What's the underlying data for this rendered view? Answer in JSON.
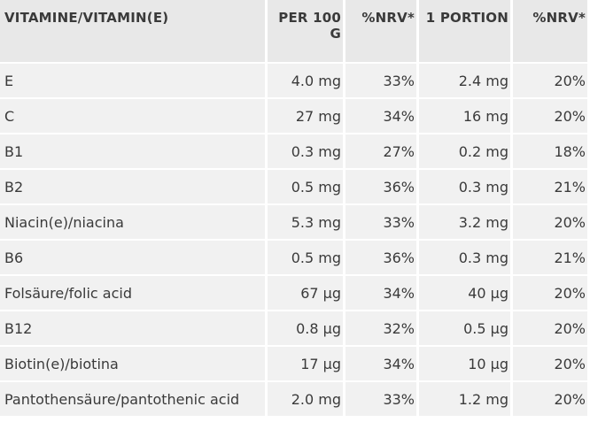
{
  "table": {
    "headers": [
      "VITAMINE/VITAMIN(E)",
      "PER 100 G",
      "%NRV*",
      "1 PORTION",
      "%NRV*"
    ],
    "rows": [
      [
        "E",
        "4.0 mg",
        "33%",
        "2.4 mg",
        "20%"
      ],
      [
        "C",
        "27 mg",
        "34%",
        "16 mg",
        "20%"
      ],
      [
        "B1",
        "0.3 mg",
        "27%",
        "0.2 mg",
        "18%"
      ],
      [
        "B2",
        "0.5 mg",
        "36%",
        "0.3 mg",
        "21%"
      ],
      [
        "Niacin(e)/niacina",
        "5.3 mg",
        "33%",
        "3.2 mg",
        "20%"
      ],
      [
        "B6",
        "0.5 mg",
        "36%",
        "0.3 mg",
        "21%"
      ],
      [
        "Folsäure/folic acid",
        "67 µg",
        "34%",
        "40 µg",
        "20%"
      ],
      [
        "B12",
        "0.8 µg",
        "32%",
        "0.5 µg",
        "20%"
      ],
      [
        "Biotin(e)/biotina",
        "17 µg",
        "34%",
        "10 µg",
        "20%"
      ],
      [
        "Pantothensäure/pantothenic acid",
        "2.0 mg",
        "33%",
        "1.2 mg",
        "20%"
      ]
    ]
  }
}
